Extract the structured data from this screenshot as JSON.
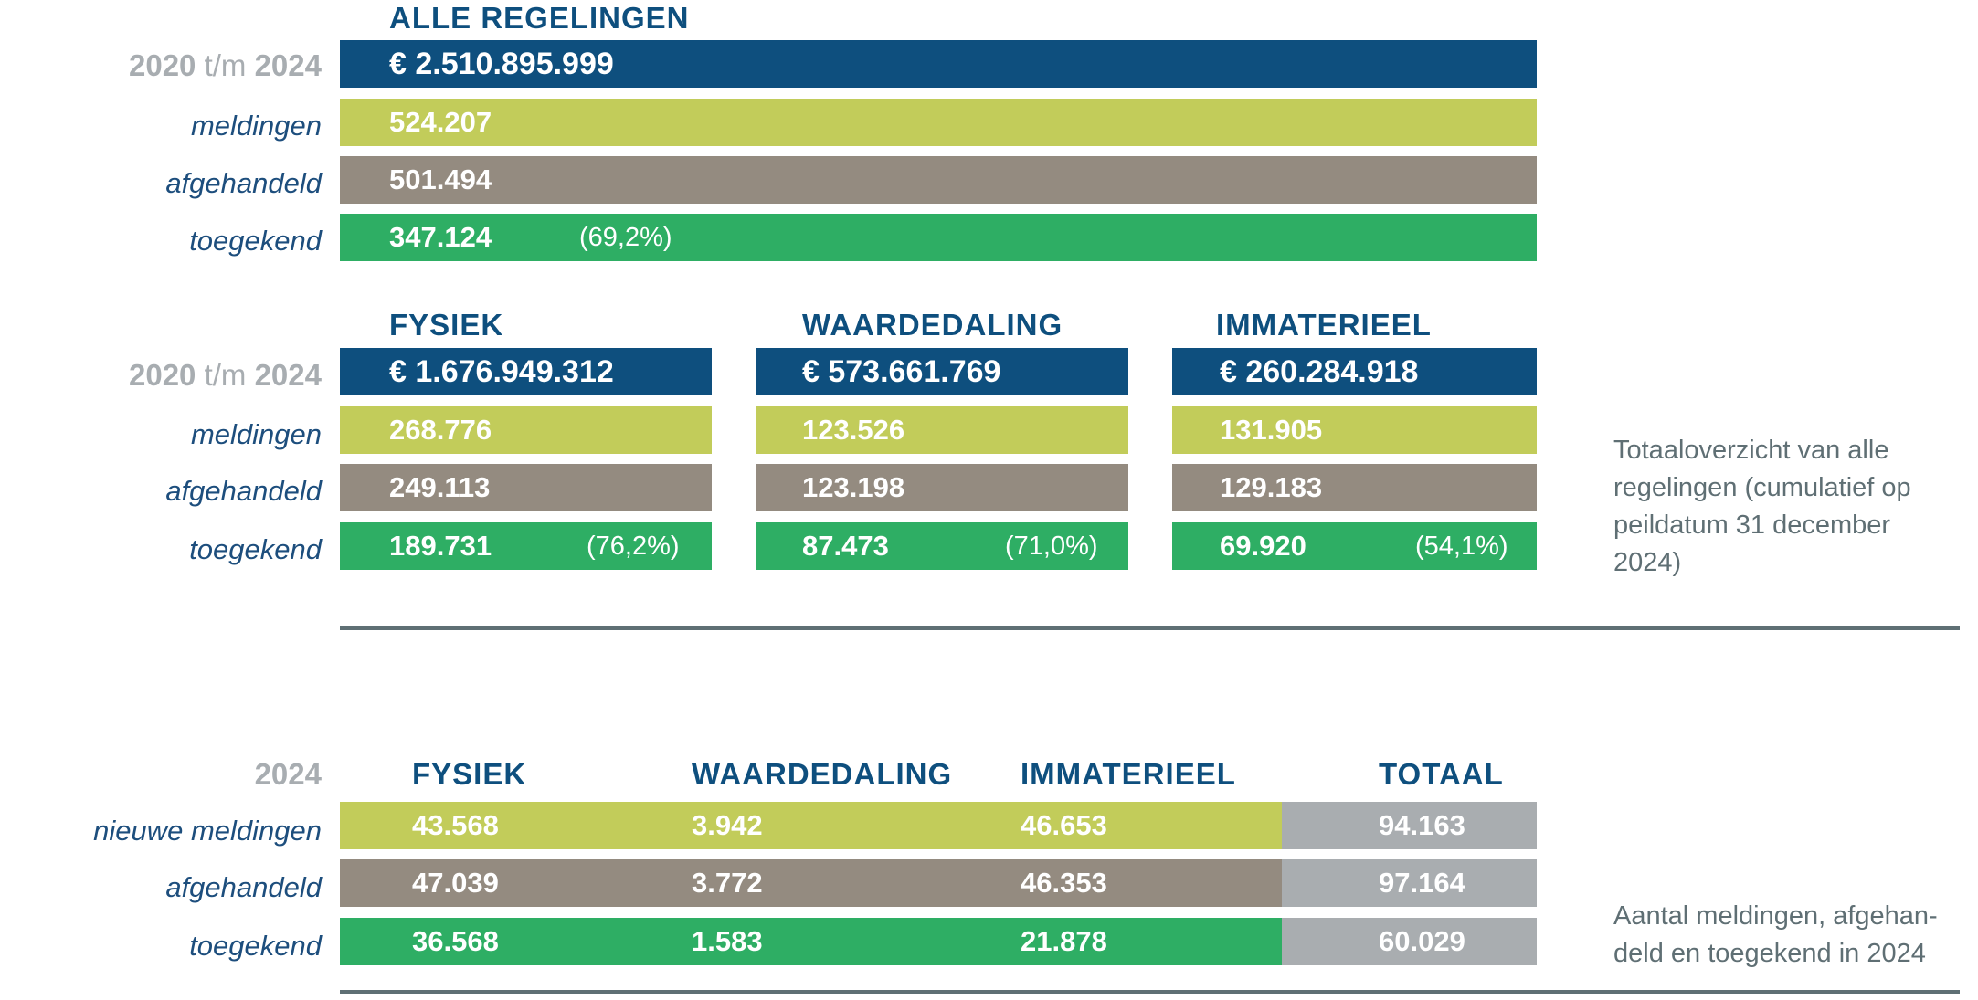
{
  "section1": {
    "period_from": "2020",
    "period_mid": "t/m",
    "period_to": "2024",
    "header": "ALLE REGELINGEN",
    "total": "€ 2.510.895.999",
    "labels": {
      "meldingen": "meldingen",
      "afgehandeld": "afgehandeld",
      "toegekend": "toegekend"
    },
    "meldingen": "524.207",
    "afgehandeld": "501.494",
    "toegekend": "347.124",
    "toegekend_pct": "(69,2%)"
  },
  "section2": {
    "period_from": "2020",
    "period_mid": "t/m",
    "period_to": "2024",
    "labels": {
      "meldingen": "meldingen",
      "afgehandeld": "afgehandeld",
      "toegekend": "toegekend"
    },
    "columns": [
      {
        "header": "FYSIEK",
        "total": "€ 1.676.949.312",
        "meldingen": "268.776",
        "afgehandeld": "249.113",
        "toegekend": "189.731",
        "pct": "(76,2%)"
      },
      {
        "header": "WAARDEDALING",
        "total": "€ 573.661.769",
        "meldingen": "123.526",
        "afgehandeld": "123.198",
        "toegekend": "87.473",
        "pct": "(71,0%)"
      },
      {
        "header": "IMMATERIEEL",
        "total": "€ 260.284.918",
        "meldingen": "131.905",
        "afgehandeld": "129.183",
        "toegekend": "69.920",
        "pct": "(54,1%)"
      }
    ],
    "note": "Totaaloverzicht van alle regelingen (cumulatief op peildatum 31 december 2024)"
  },
  "section3": {
    "period": "2024",
    "headers": [
      "FYSIEK",
      "WAARDEDALING",
      "IMMATERIEEL",
      "TOTAAL"
    ],
    "labels": {
      "nieuwe_meldingen": "nieuwe meldingen",
      "afgehandeld": "afgehandeld",
      "toegekend": "toegekend"
    },
    "nieuwe_meldingen": [
      "43.568",
      "3.942",
      "46.653",
      "94.163"
    ],
    "afgehandeld": [
      "47.039",
      "3.772",
      "46.353",
      "97.164"
    ],
    "toegekend": [
      "36.568",
      "1.583",
      "21.878",
      "60.029"
    ],
    "note_line1": "Aantal meldingen, afgehan-",
    "note_line2": "deld en toegekend in 2024"
  },
  "colors": {
    "blue": "#0e4f7e",
    "lime": "#c2cc5a",
    "taupe": "#948b80",
    "green": "#2eae64",
    "grey": "#a9adb0",
    "period": "#a8adb1",
    "rule": "#5f6f74"
  }
}
